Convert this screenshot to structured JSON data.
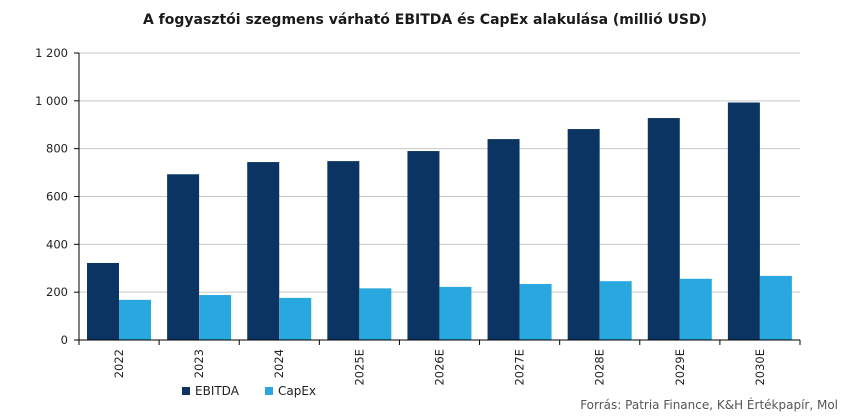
{
  "chart_data": {
    "type": "bar",
    "title": "A fogyasztói szegmens várható EBITDA és CapEx alakulása (millió USD)",
    "categories": [
      "2022",
      "2023",
      "2024",
      "2025E",
      "2026E",
      "2027E",
      "2028E",
      "2029E",
      "2030E"
    ],
    "series": [
      {
        "name": "EBITDA",
        "color": "#0b3463",
        "values": [
          322,
          693,
          744,
          748,
          790,
          840,
          882,
          928,
          993
        ]
      },
      {
        "name": "CapEx",
        "color": "#29a8e0",
        "values": [
          168,
          188,
          176,
          216,
          222,
          234,
          246,
          256,
          268
        ]
      }
    ],
    "ylim": [
      0,
      1200
    ],
    "yticks": [
      0,
      200,
      400,
      600,
      800,
      1000,
      1200
    ],
    "ytick_labels": [
      "0",
      "200",
      "400",
      "600",
      "800",
      "1 000",
      "1 200"
    ],
    "grid": true,
    "legend_position": "bottom-left",
    "source": "Forrás: Patria Finance, K&H Értékpapír, Mol"
  }
}
